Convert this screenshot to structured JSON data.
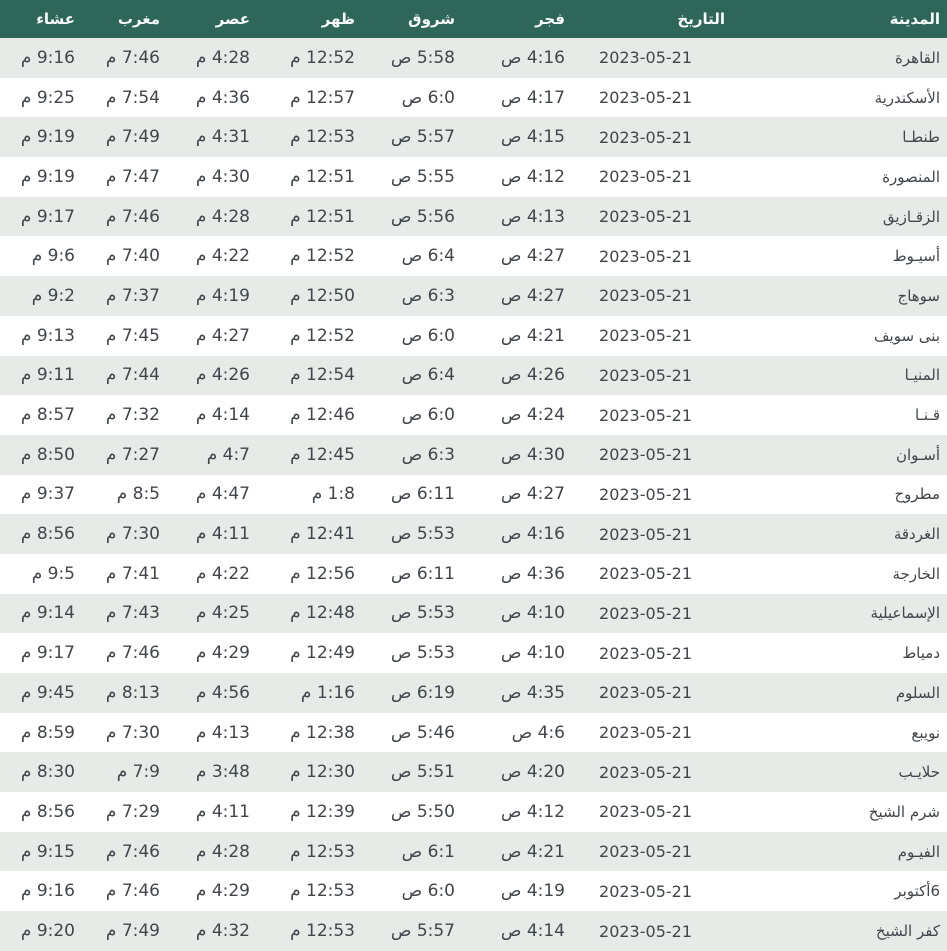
{
  "colors": {
    "header_bg": "#2e6659",
    "stripe_bg": "#e6ebe8",
    "row_bg": "#ffffff",
    "text": "#40464c",
    "header_text": "#fafcfb"
  },
  "table": {
    "direction": "rtl",
    "columns": [
      {
        "key": "city",
        "label": "المدينة"
      },
      {
        "key": "date",
        "label": "التاريخ"
      },
      {
        "key": "fajr",
        "label": "فجر"
      },
      {
        "key": "shuruq",
        "label": "شروق"
      },
      {
        "key": "dhuhr",
        "label": "ظهر"
      },
      {
        "key": "asr",
        "label": "عصر"
      },
      {
        "key": "maghrib",
        "label": "مغرب"
      },
      {
        "key": "isha",
        "label": "عشاء"
      }
    ],
    "rows": [
      {
        "city": "القاهرة",
        "date": "2023-05-21",
        "fajr": "4:16 ص",
        "shuruq": "5:58 ص",
        "dhuhr": "12:52 م",
        "asr": "4:28 م",
        "maghrib": "7:46 م",
        "isha": "9:16 م"
      },
      {
        "city": "الأسكندرية",
        "date": "2023-05-21",
        "fajr": "4:17 ص",
        "shuruq": "6:0 ص",
        "dhuhr": "12:57 م",
        "asr": "4:36 م",
        "maghrib": "7:54 م",
        "isha": "9:25 م"
      },
      {
        "city": "طنطـا",
        "date": "2023-05-21",
        "fajr": "4:15 ص",
        "shuruq": "5:57 ص",
        "dhuhr": "12:53 م",
        "asr": "4:31 م",
        "maghrib": "7:49 م",
        "isha": "9:19 م"
      },
      {
        "city": "المنصورة",
        "date": "2023-05-21",
        "fajr": "4:12 ص",
        "shuruq": "5:55 ص",
        "dhuhr": "12:51 م",
        "asr": "4:30 م",
        "maghrib": "7:47 م",
        "isha": "9:19 م"
      },
      {
        "city": "الزقـازيق",
        "date": "2023-05-21",
        "fajr": "4:13 ص",
        "shuruq": "5:56 ص",
        "dhuhr": "12:51 م",
        "asr": "4:28 م",
        "maghrib": "7:46 م",
        "isha": "9:17 م"
      },
      {
        "city": "أسيـوط",
        "date": "2023-05-21",
        "fajr": "4:27 ص",
        "shuruq": "6:4 ص",
        "dhuhr": "12:52 م",
        "asr": "4:22 م",
        "maghrib": "7:40 م",
        "isha": "9:6 م"
      },
      {
        "city": "سوهاج",
        "date": "2023-05-21",
        "fajr": "4:27 ص",
        "shuruq": "6:3 ص",
        "dhuhr": "12:50 م",
        "asr": "4:19 م",
        "maghrib": "7:37 م",
        "isha": "9:2 م"
      },
      {
        "city": "بنى سويف",
        "date": "2023-05-21",
        "fajr": "4:21 ص",
        "shuruq": "6:0 ص",
        "dhuhr": "12:52 م",
        "asr": "4:27 م",
        "maghrib": "7:45 م",
        "isha": "9:13 م"
      },
      {
        "city": "المنيـا",
        "date": "2023-05-21",
        "fajr": "4:26 ص",
        "shuruq": "6:4 ص",
        "dhuhr": "12:54 م",
        "asr": "4:26 م",
        "maghrib": "7:44 م",
        "isha": "9:11 م"
      },
      {
        "city": "قـنـا",
        "date": "2023-05-21",
        "fajr": "4:24 ص",
        "shuruq": "6:0 ص",
        "dhuhr": "12:46 م",
        "asr": "4:14 م",
        "maghrib": "7:32 م",
        "isha": "8:57 م"
      },
      {
        "city": "أسـوان",
        "date": "2023-05-21",
        "fajr": "4:30 ص",
        "shuruq": "6:3 ص",
        "dhuhr": "12:45 م",
        "asr": "4:7 م",
        "maghrib": "7:27 م",
        "isha": "8:50 م"
      },
      {
        "city": "مطروح",
        "date": "2023-05-21",
        "fajr": "4:27 ص",
        "shuruq": "6:11 ص",
        "dhuhr": "1:8 م",
        "asr": "4:47 م",
        "maghrib": "8:5 م",
        "isha": "9:37 م"
      },
      {
        "city": "الغردقة",
        "date": "2023-05-21",
        "fajr": "4:16 ص",
        "shuruq": "5:53 ص",
        "dhuhr": "12:41 م",
        "asr": "4:11 م",
        "maghrib": "7:30 م",
        "isha": "8:56 م"
      },
      {
        "city": "الخارجة",
        "date": "2023-05-21",
        "fajr": "4:36 ص",
        "shuruq": "6:11 ص",
        "dhuhr": "12:56 م",
        "asr": "4:22 م",
        "maghrib": "7:41 م",
        "isha": "9:5 م"
      },
      {
        "city": "الإسماعيلية",
        "date": "2023-05-21",
        "fajr": "4:10 ص",
        "shuruq": "5:53 ص",
        "dhuhr": "12:48 م",
        "asr": "4:25 م",
        "maghrib": "7:43 م",
        "isha": "9:14 م"
      },
      {
        "city": "دمياط",
        "date": "2023-05-21",
        "fajr": "4:10 ص",
        "shuruq": "5:53 ص",
        "dhuhr": "12:49 م",
        "asr": "4:29 م",
        "maghrib": "7:46 م",
        "isha": "9:17 م"
      },
      {
        "city": "السلوم",
        "date": "2023-05-21",
        "fajr": "4:35 ص",
        "shuruq": "6:19 ص",
        "dhuhr": "1:16 م",
        "asr": "4:56 م",
        "maghrib": "8:13 م",
        "isha": "9:45 م"
      },
      {
        "city": "نويبع",
        "date": "2023-05-21",
        "fajr": "4:6 ص",
        "shuruq": "5:46 ص",
        "dhuhr": "12:38 م",
        "asr": "4:13 م",
        "maghrib": "7:30 م",
        "isha": "8:59 م"
      },
      {
        "city": "حلايـب",
        "date": "2023-05-21",
        "fajr": "4:20 ص",
        "shuruq": "5:51 ص",
        "dhuhr": "12:30 م",
        "asr": "3:48 م",
        "maghrib": "7:9 م",
        "isha": "8:30 م"
      },
      {
        "city": "شرم الشيخ",
        "date": "2023-05-21",
        "fajr": "4:12 ص",
        "shuruq": "5:50 ص",
        "dhuhr": "12:39 م",
        "asr": "4:11 م",
        "maghrib": "7:29 م",
        "isha": "8:56 م"
      },
      {
        "city": "الفيـوم",
        "date": "2023-05-21",
        "fajr": "4:21 ص",
        "shuruq": "6:1 ص",
        "dhuhr": "12:53 م",
        "asr": "4:28 م",
        "maghrib": "7:46 م",
        "isha": "9:15 م"
      },
      {
        "city": "6أكتوبر",
        "date": "2023-05-21",
        "fajr": "4:19 ص",
        "shuruq": "6:0 ص",
        "dhuhr": "12:53 م",
        "asr": "4:29 م",
        "maghrib": "7:46 م",
        "isha": "9:16 م"
      },
      {
        "city": "كفر الشيخ",
        "date": "2023-05-21",
        "fajr": "4:14 ص",
        "shuruq": "5:57 ص",
        "dhuhr": "12:53 م",
        "asr": "4:32 م",
        "maghrib": "7:49 م",
        "isha": "9:20 م"
      }
    ]
  }
}
